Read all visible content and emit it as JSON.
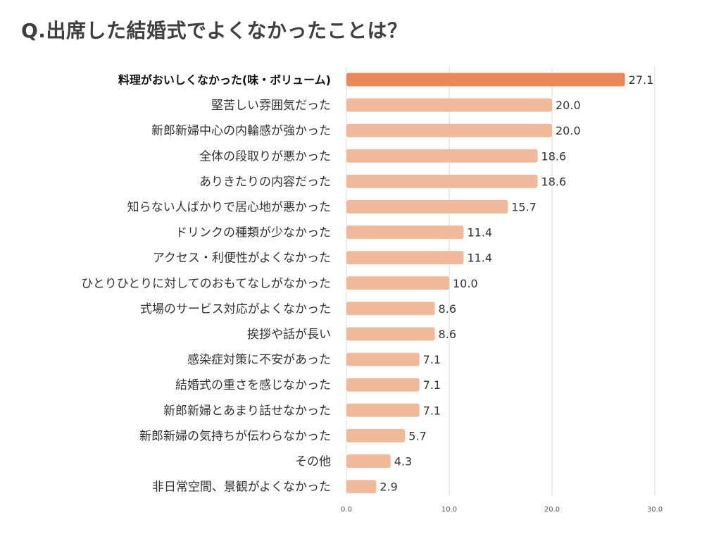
{
  "title": "Q.出席した結婚式でよくなかったことは？",
  "colors": {
    "highlight": "#e9895a",
    "bar": "#f0b99a",
    "grid": "#d9d9d9",
    "text": "#333333"
  },
  "chart_data": {
    "type": "bar",
    "orientation": "horizontal",
    "title": "Q.出席した結婚式でよくなかったことは？",
    "xlabel": "",
    "ylabel": "",
    "xlim": [
      0,
      30
    ],
    "ticks": [
      "0.0",
      "10.0",
      "20.0",
      "30.0"
    ],
    "tick_values": [
      0,
      10,
      20,
      30
    ],
    "grid": true,
    "highlight_index": 0,
    "categories": [
      "料理がおいしくなかった(味・ボリューム)",
      "堅苦しい雰囲気だった",
      "新郎新婦中心の内輪感が強かった",
      "全体の段取りが悪かった",
      "ありきたりの内容だった",
      "知らない人ばかりで居心地が悪かった",
      "ドリンクの種類が少なかった",
      "アクセス・利便性がよくなかった",
      "ひとりひとりに対してのおもてなしがなかった",
      "式場のサービス対応がよくなかった",
      "挨拶や話が長い",
      "感染症対策に不安があった",
      "結婚式の重さを感じなかった",
      "新郎新婦とあまり話せなかった",
      "新郎新婦の気持ちが伝わらなかった",
      "その他",
      "非日常空間、景観がよくなかった"
    ],
    "values": [
      27.1,
      20.0,
      20.0,
      18.6,
      18.6,
      15.7,
      11.4,
      11.4,
      10.0,
      8.6,
      8.6,
      7.1,
      7.1,
      7.1,
      5.7,
      4.3,
      2.9
    ],
    "value_labels": [
      "27.1",
      "20.0",
      "20.0",
      "18.6",
      "18.6",
      "15.7",
      "11.4",
      "11.4",
      "10.0",
      "8.6",
      "8.6",
      "7.1",
      "7.1",
      "7.1",
      "5.7",
      "4.3",
      "2.9"
    ]
  }
}
